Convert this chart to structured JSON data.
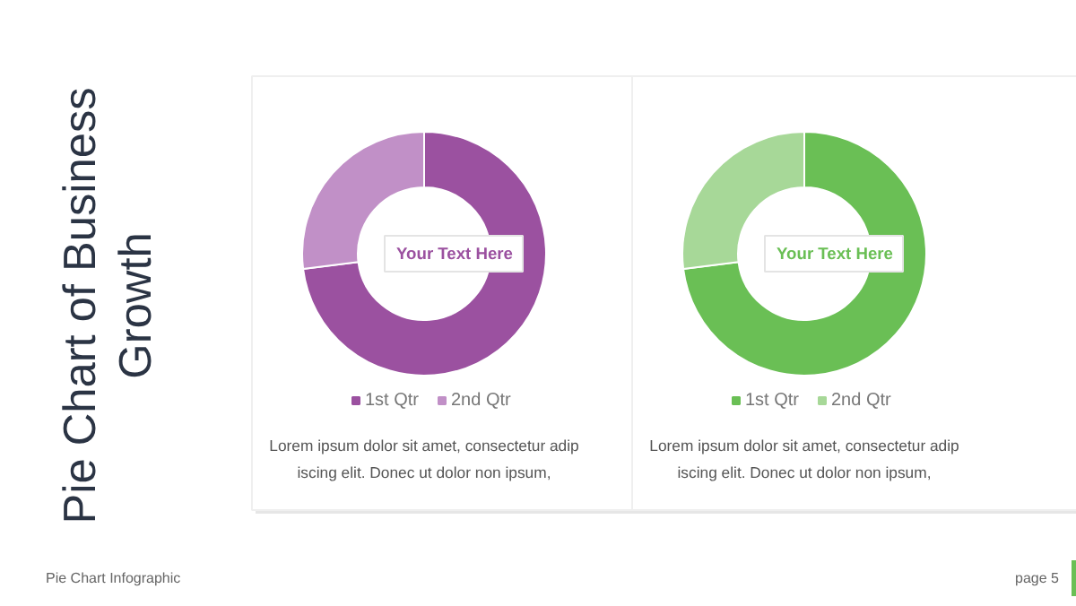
{
  "chart_data": [
    {
      "type": "donut",
      "title": "Pie Chart of Business\nGrowth",
      "categories": [
        "1st Qtr",
        "2nd Qtr"
      ],
      "values": [
        73,
        27
      ],
      "colors": [
        "#9b51a0",
        "#c190c7"
      ],
      "legend": "bottom",
      "annotations": [
        "Your Text Here",
        "Lorem ipsum dolor sit amet, consectetur adip\niscing elit. Donec ut dolor non ipsum,",
        "Pie Chart Infographic",
        "page 5"
      ]
    },
    {
      "type": "donut",
      "categories": [
        "1st Qtr",
        "2nd Qtr"
      ],
      "values": [
        73,
        27
      ],
      "colors": [
        "#6abf55",
        "#a7d898"
      ],
      "legend": "bottom",
      "annotations": [
        "Your Text Here",
        "Lorem ipsum dolor sit amet, consectetur adip\niscing elit. Donec ut dolor non ipsum,"
      ]
    }
  ]
}
